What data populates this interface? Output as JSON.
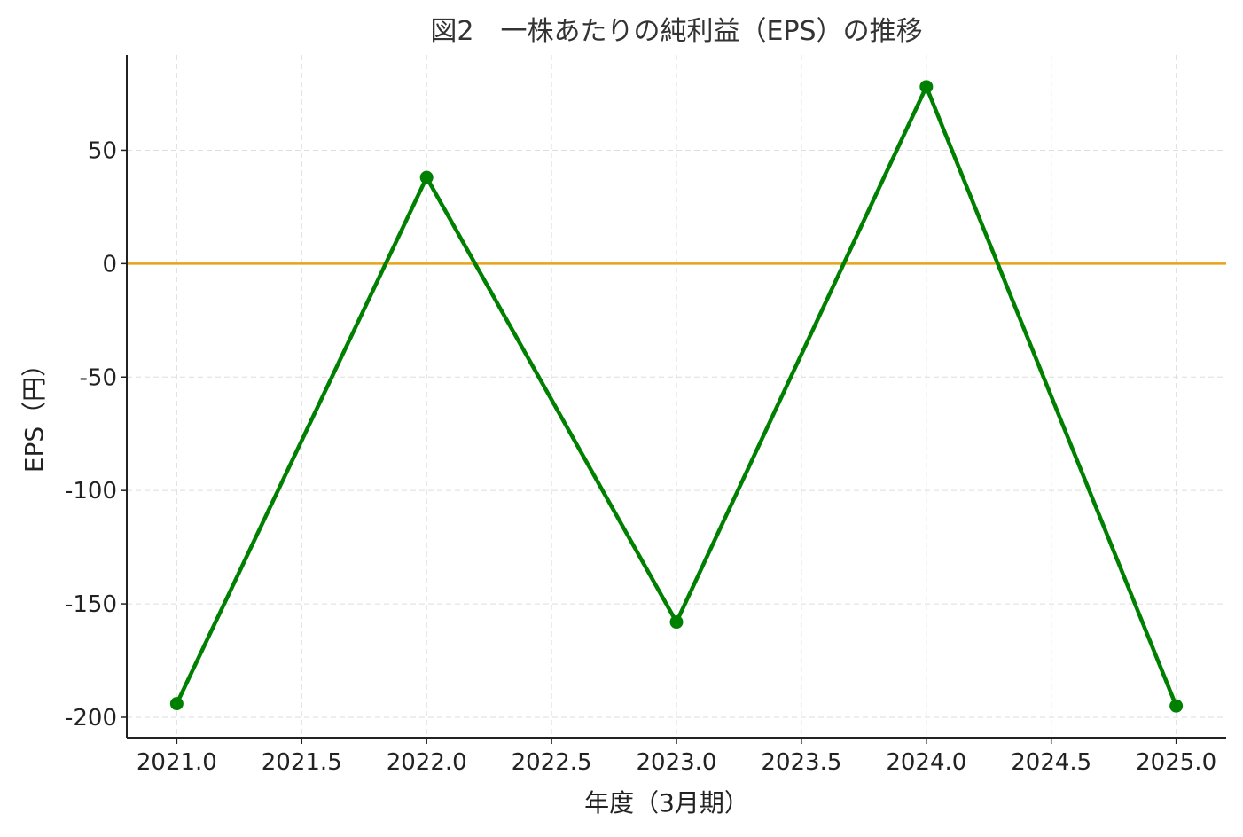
{
  "chart_data": {
    "type": "line",
    "title": "図2　一株あたりの純利益（EPS）の推移",
    "xlabel": "年度（3月期）",
    "ylabel": "EPS（円）",
    "x": [
      2021,
      2022,
      2023,
      2024,
      2025
    ],
    "series": [
      {
        "values": [
          -194,
          38,
          -158,
          78,
          -195
        ],
        "color": "#008000"
      }
    ],
    "reference_lines": [
      {
        "axis": "y",
        "value": 0,
        "color": "#E8A317"
      }
    ],
    "xlim": [
      2020.8,
      2025.2
    ],
    "ylim": [
      -209,
      92
    ],
    "x_ticks": [
      2021.0,
      2021.5,
      2022.0,
      2022.5,
      2023.0,
      2023.5,
      2024.0,
      2024.5,
      2025.0
    ],
    "x_tick_labels": [
      "2021.0",
      "2021.5",
      "2022.0",
      "2022.5",
      "2023.0",
      "2023.5",
      "2024.0",
      "2024.5",
      "2025.0"
    ],
    "y_ticks": [
      50,
      0,
      -50,
      -100,
      -150,
      -200
    ],
    "y_tick_labels": [
      "50",
      "0",
      "-50",
      "-100",
      "-150",
      "-200"
    ],
    "grid": true,
    "grid_style": "dashed",
    "legend": "none"
  }
}
